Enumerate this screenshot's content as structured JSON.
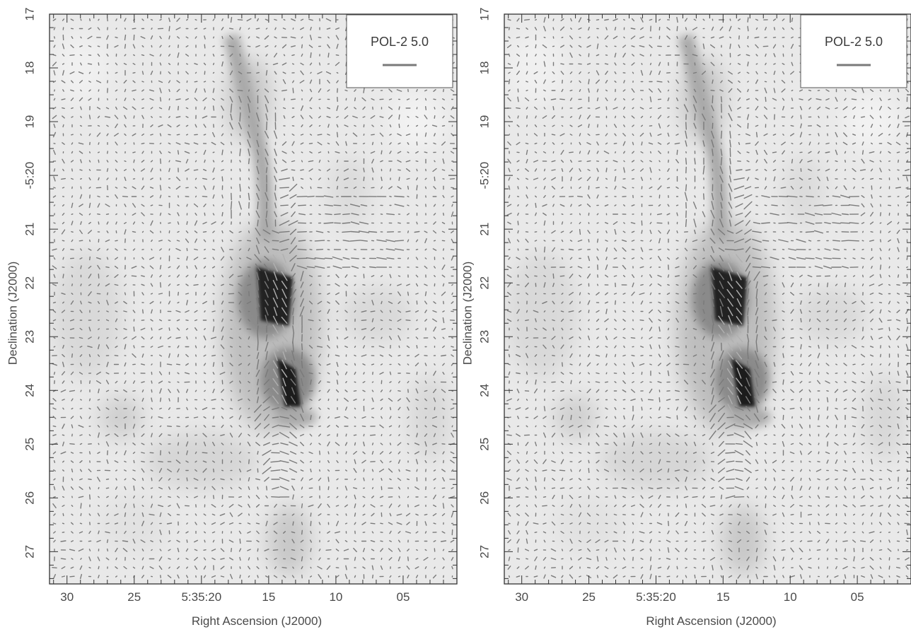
{
  "chart_data": [
    {
      "type": "scatter",
      "title": "",
      "xlabel": "Right Ascension (J2000)",
      "ylabel": "Declination (J2000)",
      "xtick_labels": [
        "30",
        "25",
        "5:35:20",
        "15",
        "10",
        "05"
      ],
      "ytick_labels": [
        "17",
        "18",
        "19",
        "-5:20",
        "21",
        "22",
        "23",
        "24",
        "25",
        "26",
        "27"
      ],
      "x_axis": {
        "tick_seconds": [
          30,
          25,
          20,
          15,
          10,
          5
        ],
        "range_seconds": [
          31.3,
          1.0
        ]
      },
      "y_axis": {
        "tick_arcmin": [
          17,
          18,
          19,
          20,
          21,
          22,
          23,
          24,
          25,
          26,
          27
        ],
        "range_arcmin": [
          17.0,
          27.6
        ]
      },
      "background": "grayscale dust emission intensity map",
      "series": [
        {
          "marks": "polarization vectors",
          "color": "#7a7a7a"
        }
      ],
      "legend": {
        "label": "POL-2 5.0",
        "position": "top-right",
        "line_color": "#7a7a7a"
      },
      "grid": false
    },
    {
      "type": "scatter",
      "title": "",
      "xlabel": "Right Ascension (J2000)",
      "ylabel": "Declination (J2000)",
      "xtick_labels": [
        "30",
        "25",
        "5:35:20",
        "15",
        "10",
        "05"
      ],
      "ytick_labels": [
        "17",
        "18",
        "19",
        "-5:20",
        "21",
        "22",
        "23",
        "24",
        "25",
        "26",
        "27"
      ],
      "x_axis": {
        "tick_seconds": [
          30,
          25,
          20,
          15,
          10,
          5
        ],
        "range_seconds": [
          31.3,
          1.0
        ]
      },
      "y_axis": {
        "tick_arcmin": [
          17,
          18,
          19,
          20,
          21,
          22,
          23,
          24,
          25,
          26,
          27
        ],
        "range_arcmin": [
          17.0,
          27.6
        ]
      },
      "background": "grayscale dust emission intensity map",
      "series": [
        {
          "marks": "polarization vectors",
          "color": "#7a7a7a"
        }
      ],
      "legend": {
        "label": "POL-2 5.0",
        "position": "top-right",
        "line_color": "#7a7a7a"
      },
      "grid": false
    }
  ]
}
